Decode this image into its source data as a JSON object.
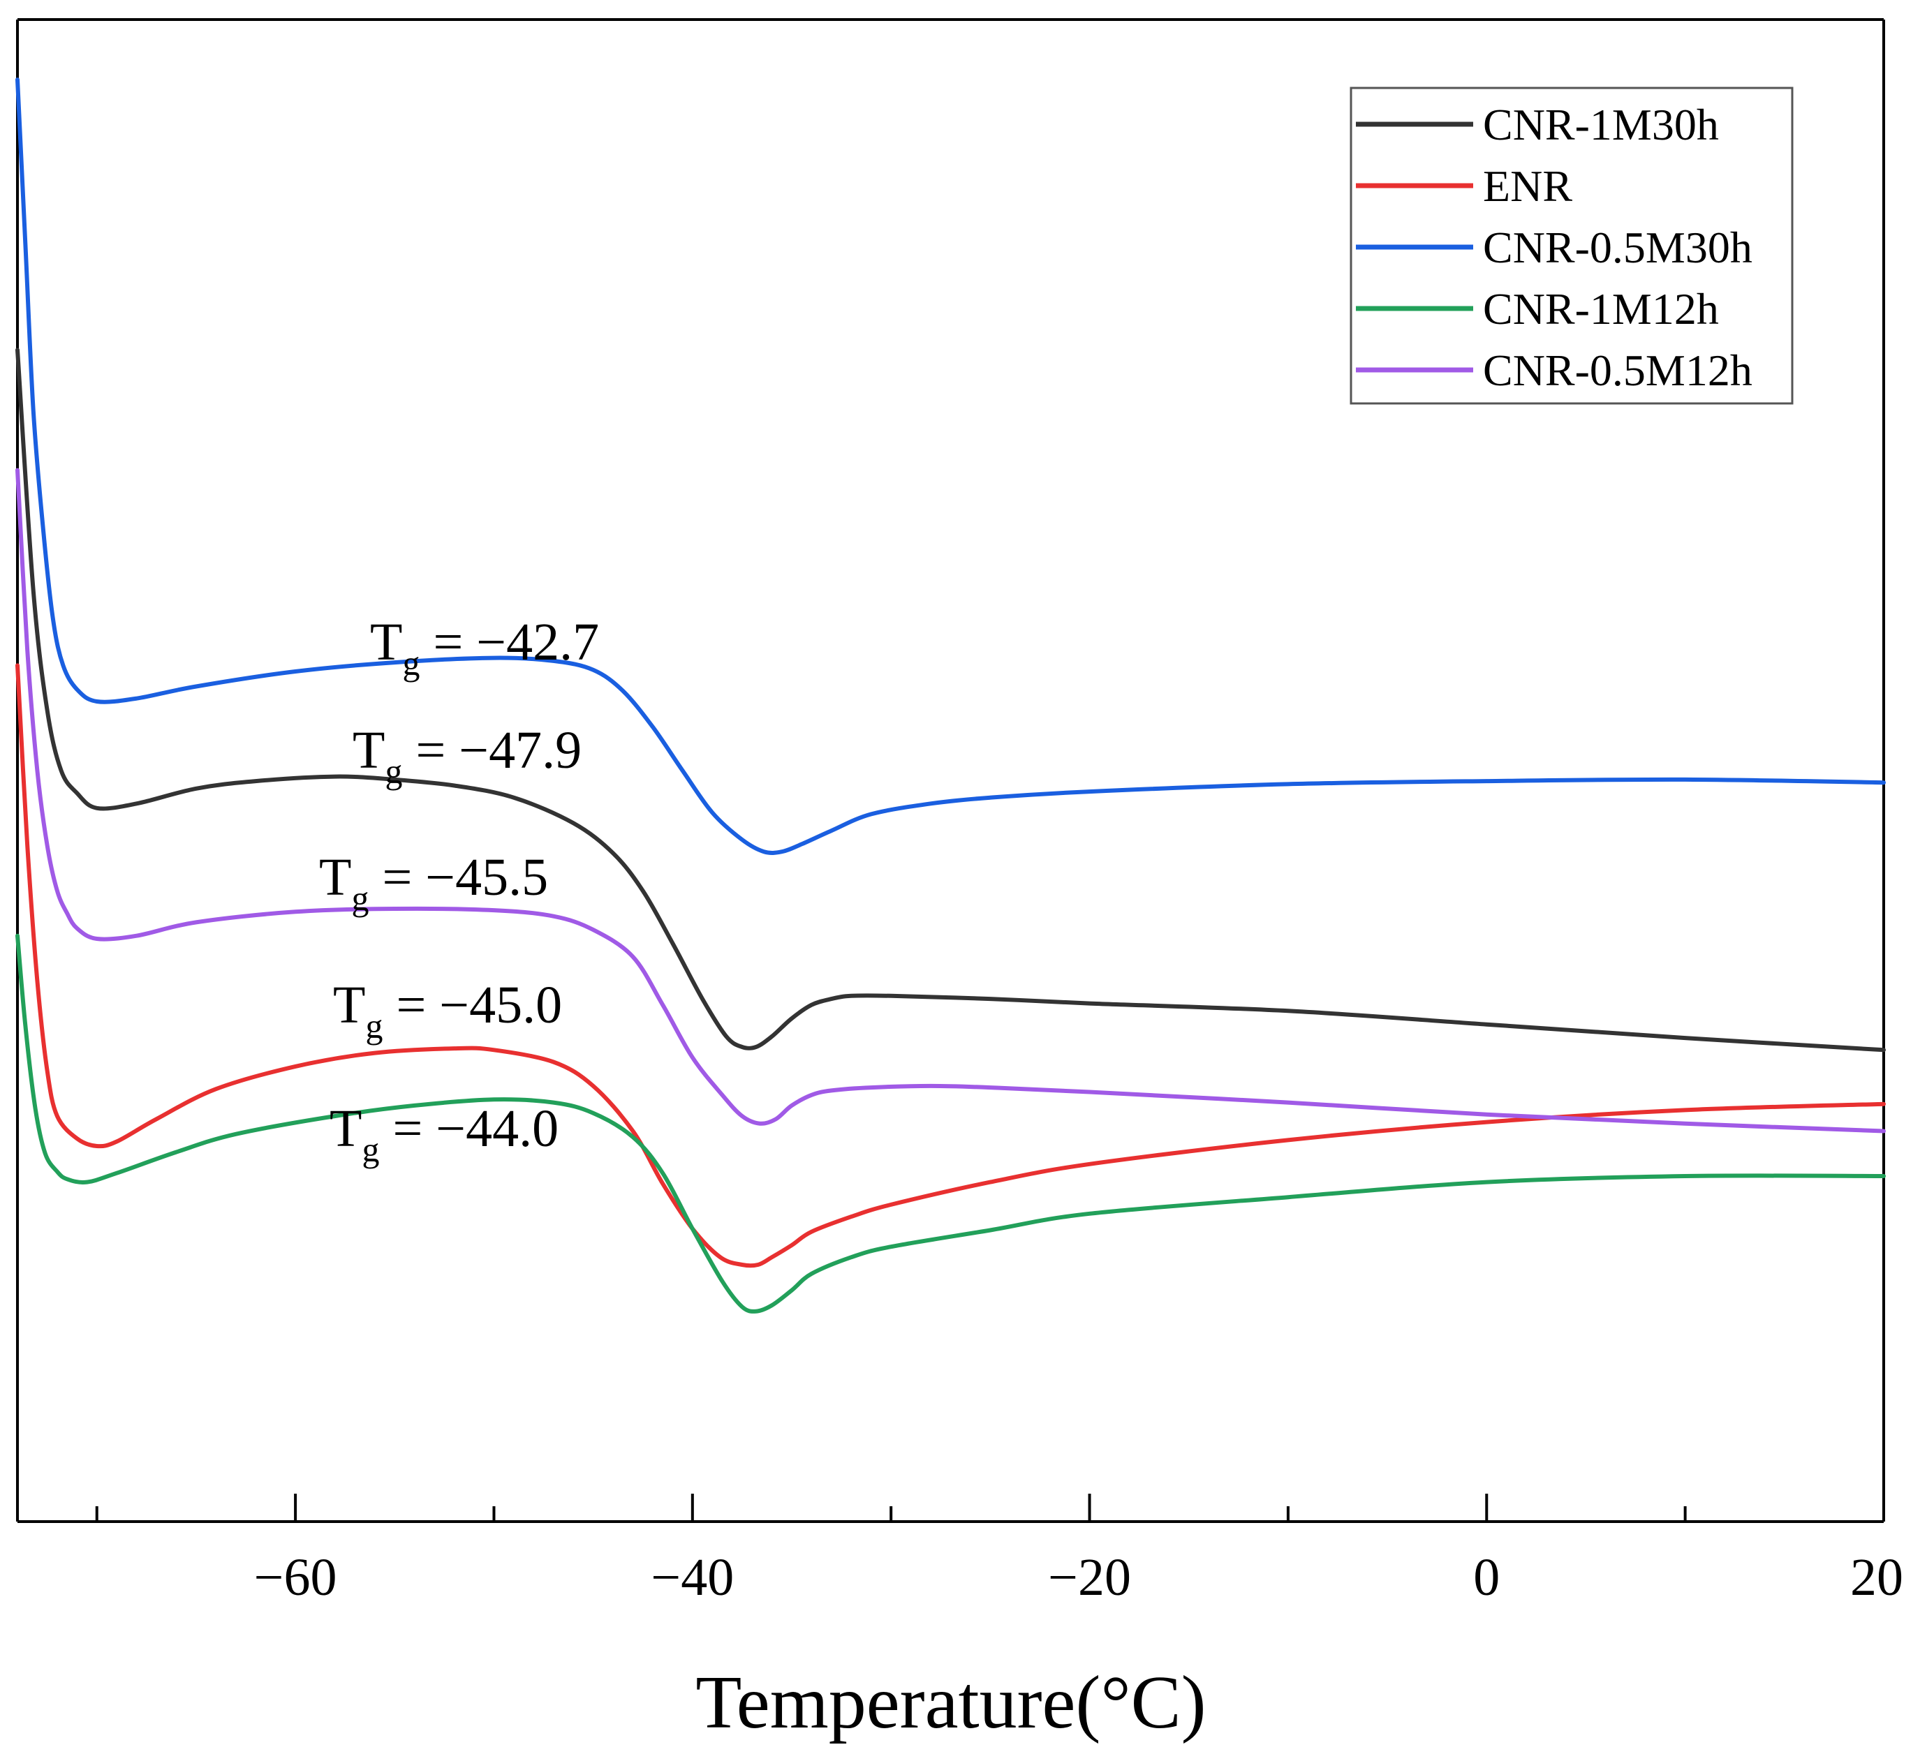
{
  "chart_data": {
    "type": "line",
    "xlabel": "Temperature(°C)",
    "ylabel": "",
    "xlim": [
      -74,
      20
    ],
    "ylim": [
      0,
      100
    ],
    "xticks": [
      -60,
      -40,
      -20,
      0,
      20
    ],
    "xtick_labels": [
      "−60",
      "−40",
      "−20",
      "0",
      "20"
    ],
    "grid": false,
    "legend_position": "top-right",
    "series": [
      {
        "name": "CNR-1M30h",
        "color": "#333333",
        "x": [
          -74,
          -73.2,
          -72.5,
          -71.8,
          -71,
          -70,
          -68,
          -65,
          -62,
          -58,
          -55,
          -52,
          -49,
          -46,
          -44,
          -42.5,
          -41,
          -39.5,
          -38.3,
          -37.5,
          -36.8,
          -36,
          -35,
          -34,
          -33,
          -32,
          -30,
          -25,
          -20,
          -10,
          0,
          10,
          20
        ],
        "y": [
          78,
          62,
          54,
          50,
          48.5,
          47.5,
          47.8,
          48.8,
          49.3,
          49.6,
          49.4,
          49,
          48.2,
          46.5,
          44.5,
          42,
          38.5,
          34.8,
          32.3,
          31.6,
          31.6,
          32.3,
          33.5,
          34.4,
          34.8,
          35,
          35,
          34.8,
          34.5,
          34,
          33.1,
          32.2,
          31.4
        ]
      },
      {
        "name": "ENR",
        "color": "#e83030",
        "x": [
          -74,
          -73.5,
          -73,
          -72.5,
          -72,
          -71,
          -70,
          -69,
          -67,
          -64,
          -60,
          -56,
          -52,
          -50,
          -47,
          -45,
          -43,
          -41.5,
          -40,
          -38.6,
          -37.5,
          -36.7,
          -36,
          -35,
          -34,
          -32,
          -30,
          -25,
          -20,
          -10,
          0,
          10,
          20
        ],
        "y": [
          57,
          45,
          36,
          30,
          27,
          25.5,
          25,
          25.3,
          26.8,
          28.8,
          30.3,
          31.2,
          31.5,
          31.4,
          30.6,
          29,
          26,
          22.5,
          19.5,
          17.6,
          17.1,
          17.1,
          17.6,
          18.4,
          19.3,
          20.3,
          21.1,
          22.6,
          23.8,
          25.4,
          26.6,
          27.4,
          27.8
        ]
      },
      {
        "name": "CNR-0.5M30h",
        "color": "#1a5fe0",
        "x": [
          -74,
          -73.6,
          -73.2,
          -72.7,
          -72.2,
          -71.7,
          -71,
          -70,
          -68,
          -65,
          -60,
          -55,
          -50,
          -47,
          -45,
          -43.5,
          -42,
          -40.5,
          -39,
          -37.5,
          -36.4,
          -35.5,
          -34.5,
          -33,
          -31,
          -28,
          -25,
          -20,
          -10,
          0,
          10,
          20
        ],
        "y": [
          96,
          85,
          74,
          66,
          60,
          57,
          55.4,
          54.6,
          54.8,
          55.6,
          56.6,
          57.2,
          57.5,
          57.3,
          56.7,
          55.3,
          52.9,
          50,
          47.2,
          45.4,
          44.6,
          44.6,
          45.1,
          46,
          47.1,
          47.8,
          48.2,
          48.6,
          49.1,
          49.3,
          49.4,
          49.2
        ]
      },
      {
        "name": "CNR-1M12h",
        "color": "#22a05a",
        "x": [
          -74,
          -73.6,
          -73.1,
          -72.6,
          -72,
          -71.5,
          -70.5,
          -69,
          -66,
          -63,
          -58,
          -54,
          -50,
          -47,
          -45,
          -43,
          -41.5,
          -40,
          -38.5,
          -37.5,
          -36.8,
          -36,
          -35,
          -34,
          -32,
          -30,
          -25,
          -20,
          -10,
          0,
          10,
          20
        ],
        "y": [
          39,
          33,
          27.5,
          24.5,
          23.3,
          22.8,
          22.6,
          23.2,
          24.6,
          25.8,
          27,
          27.7,
          28.1,
          27.9,
          27.2,
          25.6,
          23.2,
          19.5,
          16,
          14.3,
          14,
          14.4,
          15.4,
          16.5,
          17.6,
          18.3,
          19.4,
          20.5,
          21.6,
          22.6,
          23,
          23
        ]
      },
      {
        "name": "CNR-0.5M12h",
        "color": "#a05ae6",
        "x": [
          -74,
          -73.5,
          -73,
          -72.5,
          -72,
          -71.5,
          -71,
          -70,
          -68,
          -65,
          -60,
          -55,
          -50,
          -47,
          -45,
          -43,
          -41.5,
          -40,
          -38.5,
          -37.5,
          -36.6,
          -35.8,
          -35,
          -34,
          -33,
          -31,
          -28,
          -25,
          -20,
          -10,
          0,
          10,
          20
        ],
        "y": [
          70,
          58,
          50,
          45,
          42,
          40.5,
          39.5,
          38.8,
          39,
          39.9,
          40.6,
          40.8,
          40.7,
          40.3,
          39.4,
          37.6,
          34.4,
          30.9,
          28.4,
          27,
          26.5,
          26.8,
          27.7,
          28.4,
          28.7,
          28.9,
          29,
          28.9,
          28.6,
          27.9,
          27.1,
          26.5,
          26
        ]
      }
    ],
    "annotations": [
      {
        "base": "T",
        "sub": "g",
        "text": " = −42.7"
      },
      {
        "base": "T",
        "sub": "g",
        "text": " = −47.9"
      },
      {
        "base": "T",
        "sub": "g",
        "text": " = −45.5"
      },
      {
        "base": "T",
        "sub": "g",
        "text": " = −45.0"
      },
      {
        "base": "T",
        "sub": "g",
        "text": " = −44.0"
      }
    ]
  }
}
